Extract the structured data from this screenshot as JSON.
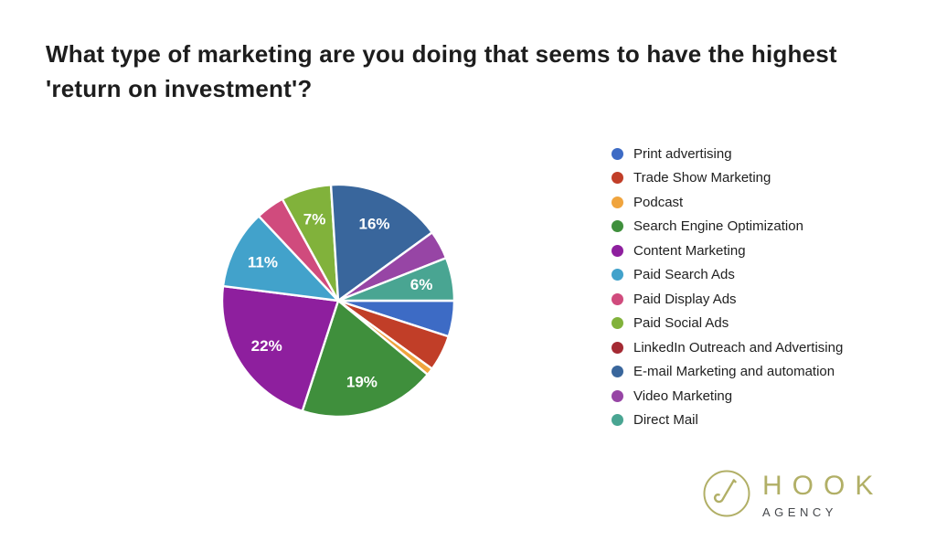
{
  "title": "What type of marketing are you doing that seems to have the highest 'return on investment'?",
  "chart_data": {
    "type": "pie",
    "title": "What type of marketing are you doing that seems to have the highest 'return on investment'?",
    "legend_position": "right",
    "start_angle_clockwise_from_top_deg": 90,
    "slice_label_format": "{value}%",
    "slice_label_shown_when_percent_gte": 6,
    "categories": [
      "Print advertising",
      "Trade Show Marketing",
      "Podcast",
      "Search Engine Optimization",
      "Content Marketing",
      "Paid Search Ads",
      "Paid Display Ads",
      "Paid Social Ads",
      "LinkedIn Outreach and Advertising",
      "E-mail Marketing and automation",
      "Video Marketing",
      "Direct Mail"
    ],
    "values": [
      5,
      5,
      1,
      19,
      22,
      11,
      4,
      7,
      0,
      16,
      4,
      6
    ],
    "colors": [
      "#3D6BC5",
      "#C13E28",
      "#F0A43D",
      "#3F8F3C",
      "#8E1F9E",
      "#42A2CB",
      "#D04B7D",
      "#81B23B",
      "#A42A33",
      "#39669C",
      "#9745A5",
      "#49A592"
    ],
    "visible_slice_labels": [
      "19%",
      "22%",
      "11%",
      "7%",
      "16%",
      "6%"
    ]
  },
  "logo": {
    "brand": "HOOK",
    "sub": "AGENCY",
    "brand_color": "#b1af66",
    "sub_color": "#46484c"
  }
}
